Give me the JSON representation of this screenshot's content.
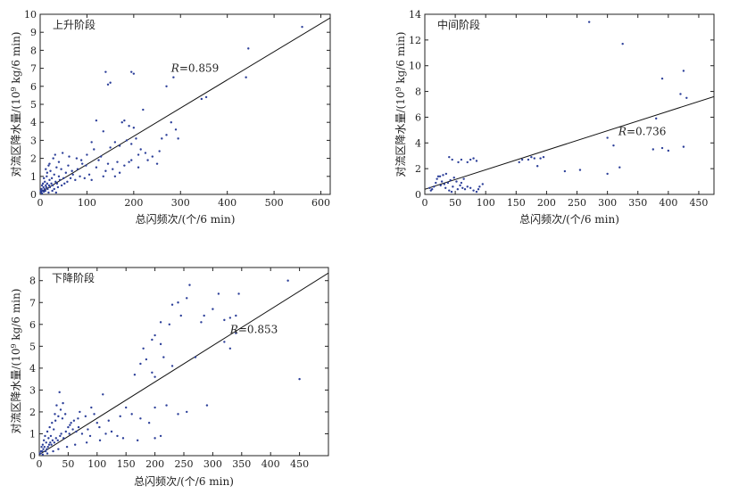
{
  "chart_data": [
    {
      "type": "scatter",
      "title": "上升阶段",
      "xlabel": "总闪频次/(个/6 min)",
      "ylabel_pre": "对流区降水量/(10",
      "ylabel_sup": "9",
      "ylabel_post": " kg/6 min)",
      "r_prefix": "R",
      "r_value": "=0.859",
      "xlim": [
        0,
        620
      ],
      "ylim": [
        0,
        10
      ],
      "xticks": [
        0,
        100,
        200,
        300,
        400,
        500,
        600
      ],
      "yticks": [
        0,
        1,
        2,
        3,
        4,
        5,
        6,
        7,
        8,
        9,
        10
      ],
      "fit_line": {
        "x": [
          0,
          620
        ],
        "y": [
          0.1,
          9.8
        ]
      },
      "r_label_at": [
        280,
        6.8
      ],
      "points": [
        [
          140,
          6.8
        ],
        [
          150,
          6.2
        ],
        [
          145,
          6.1
        ],
        [
          195,
          6.8
        ],
        [
          200,
          6.7
        ],
        [
          270,
          6.0
        ],
        [
          285,
          6.5
        ],
        [
          560,
          9.3
        ],
        [
          445,
          8.1
        ],
        [
          440,
          6.5
        ],
        [
          355,
          5.4
        ],
        [
          345,
          5.3
        ],
        [
          120,
          4.1
        ],
        [
          135,
          3.5
        ],
        [
          175,
          4.0
        ],
        [
          180,
          4.1
        ],
        [
          190,
          3.8
        ],
        [
          200,
          3.7
        ],
        [
          220,
          4.7
        ],
        [
          260,
          3.1
        ],
        [
          270,
          3.3
        ],
        [
          280,
          4.0
        ],
        [
          290,
          3.6
        ],
        [
          295,
          3.1
        ],
        [
          110,
          2.9
        ],
        [
          115,
          2.5
        ],
        [
          100,
          2.2
        ],
        [
          130,
          2.1
        ],
        [
          150,
          2.6
        ],
        [
          160,
          2.9
        ],
        [
          170,
          2.7
        ],
        [
          185,
          3.0
        ],
        [
          195,
          2.8
        ],
        [
          205,
          3.1
        ],
        [
          210,
          2.2
        ],
        [
          215,
          2.5
        ],
        [
          225,
          2.3
        ],
        [
          230,
          1.9
        ],
        [
          190,
          1.8
        ],
        [
          180,
          1.6
        ],
        [
          170,
          1.2
        ],
        [
          160,
          1.0
        ],
        [
          140,
          1.3
        ],
        [
          120,
          1.5
        ],
        [
          90,
          1.7
        ],
        [
          80,
          1.4
        ],
        [
          70,
          1.1
        ],
        [
          60,
          1.6
        ],
        [
          55,
          1.2
        ],
        [
          50,
          0.9
        ],
        [
          45,
          1.4
        ],
        [
          40,
          1.8
        ],
        [
          35,
          1.5
        ],
        [
          30,
          1.1
        ],
        [
          28,
          2.0
        ],
        [
          25,
          0.9
        ],
        [
          22,
          1.3
        ],
        [
          20,
          0.8
        ],
        [
          18,
          1.6
        ],
        [
          15,
          0.6
        ],
        [
          14,
          1.0
        ],
        [
          12,
          0.5
        ],
        [
          10,
          0.7
        ],
        [
          9,
          0.3
        ],
        [
          8,
          0.9
        ],
        [
          7,
          0.4
        ],
        [
          6,
          0.6
        ],
        [
          5,
          0.2
        ],
        [
          4,
          0.5
        ],
        [
          3,
          0.3
        ],
        [
          2,
          0.1
        ],
        [
          1,
          0.2
        ],
        [
          11,
          0.2
        ],
        [
          13,
          0.4
        ],
        [
          16,
          0.3
        ],
        [
          19,
          0.5
        ],
        [
          21,
          0.4
        ],
        [
          24,
          0.6
        ],
        [
          27,
          0.5
        ],
        [
          30,
          0.3
        ],
        [
          33,
          0.7
        ],
        [
          36,
          0.6
        ],
        [
          38,
          0.4
        ],
        [
          42,
          0.8
        ],
        [
          46,
          0.5
        ],
        [
          52,
          0.6
        ],
        [
          58,
          0.7
        ],
        [
          65,
          0.9
        ],
        [
          75,
          0.8
        ],
        [
          85,
          1.0
        ],
        [
          95,
          0.9
        ],
        [
          105,
          1.1
        ],
        [
          62,
          2.1
        ],
        [
          48,
          2.3
        ],
        [
          32,
          2.2
        ],
        [
          125,
          1.9
        ],
        [
          145,
          1.7
        ],
        [
          165,
          1.8
        ],
        [
          155,
          1.4
        ],
        [
          135,
          1.0
        ],
        [
          110,
          0.8
        ],
        [
          240,
          2.1
        ],
        [
          250,
          1.7
        ],
        [
          255,
          2.4
        ],
        [
          210,
          1.5
        ],
        [
          195,
          1.9
        ],
        [
          18,
          0.1
        ],
        [
          26,
          0.2
        ],
        [
          34,
          0.1
        ],
        [
          8,
          0.15
        ],
        [
          4,
          0.05
        ],
        [
          15,
          1.2
        ],
        [
          20,
          1.7
        ],
        [
          12,
          1.4
        ],
        [
          40,
          1.0
        ],
        [
          68,
          1.3
        ],
        [
          78,
          2.0
        ],
        [
          88,
          1.9
        ],
        [
          98,
          1.6
        ]
      ]
    },
    {
      "type": "scatter",
      "title": "中间阶段",
      "xlabel": "总闪频次/(个/6 min)",
      "ylabel_pre": "对流区降水量/(10",
      "ylabel_sup": "9",
      "ylabel_post": " kg/6 min)",
      "r_prefix": "R",
      "r_value": "=0.736",
      "xlim": [
        0,
        475
      ],
      "ylim": [
        0,
        14
      ],
      "xticks": [
        0,
        50,
        100,
        150,
        200,
        250,
        300,
        350,
        400,
        450
      ],
      "yticks": [
        0,
        2,
        4,
        6,
        8,
        10,
        12,
        14
      ],
      "fit_line": {
        "x": [
          0,
          475
        ],
        "y": [
          0.4,
          7.6
        ]
      },
      "r_label_at": [
        318,
        4.6
      ],
      "points": [
        [
          270,
          13.4
        ],
        [
          325,
          11.7
        ],
        [
          390,
          9.0
        ],
        [
          425,
          9.6
        ],
        [
          420,
          7.8
        ],
        [
          430,
          7.5
        ],
        [
          380,
          5.9
        ],
        [
          300,
          4.4
        ],
        [
          310,
          3.8
        ],
        [
          375,
          3.5
        ],
        [
          390,
          3.6
        ],
        [
          400,
          3.4
        ],
        [
          425,
          3.7
        ],
        [
          320,
          2.1
        ],
        [
          300,
          1.6
        ],
        [
          255,
          1.9
        ],
        [
          230,
          1.8
        ],
        [
          190,
          2.8
        ],
        [
          195,
          2.9
        ],
        [
          170,
          2.7
        ],
        [
          155,
          2.5
        ],
        [
          175,
          2.9
        ],
        [
          160,
          2.7
        ],
        [
          180,
          2.8
        ],
        [
          185,
          2.2
        ],
        [
          40,
          2.9
        ],
        [
          45,
          2.7
        ],
        [
          55,
          2.5
        ],
        [
          60,
          2.7
        ],
        [
          70,
          2.5
        ],
        [
          75,
          2.7
        ],
        [
          80,
          2.8
        ],
        [
          85,
          2.6
        ],
        [
          35,
          1.6
        ],
        [
          30,
          1.5
        ],
        [
          25,
          1.4
        ],
        [
          20,
          1.2
        ],
        [
          22,
          1.4
        ],
        [
          28,
          1.0
        ],
        [
          32,
          0.8
        ],
        [
          38,
          0.9
        ],
        [
          42,
          1.1
        ],
        [
          48,
          1.3
        ],
        [
          52,
          1.0
        ],
        [
          58,
          0.7
        ],
        [
          62,
          0.5
        ],
        [
          66,
          0.4
        ],
        [
          70,
          0.6
        ],
        [
          75,
          0.5
        ],
        [
          80,
          0.3
        ],
        [
          85,
          0.2
        ],
        [
          90,
          0.6
        ],
        [
          95,
          0.8
        ],
        [
          15,
          0.6
        ],
        [
          12,
          0.4
        ],
        [
          10,
          0.3
        ],
        [
          8,
          0.5
        ],
        [
          18,
          0.9
        ],
        [
          26,
          0.7
        ],
        [
          34,
          0.5
        ],
        [
          40,
          0.3
        ],
        [
          46,
          0.6
        ],
        [
          54,
          0.4
        ],
        [
          60,
          0.9
        ],
        [
          64,
          1.2
        ],
        [
          44,
          0.2
        ],
        [
          88,
          0.4
        ]
      ]
    },
    {
      "type": "scatter",
      "title": "下降阶段",
      "xlabel": "总闪频次/(个/6 min)",
      "ylabel_pre": "对流区降水量/(10",
      "ylabel_sup": "9",
      "ylabel_post": " kg/6 min)",
      "r_prefix": "R",
      "r_value": "=0.853",
      "xlim": [
        0,
        500
      ],
      "ylim": [
        0,
        8.6
      ],
      "xticks": [
        0,
        50,
        100,
        150,
        200,
        250,
        300,
        350,
        400,
        450
      ],
      "yticks": [
        0,
        1,
        2,
        3,
        4,
        5,
        6,
        7,
        8
      ],
      "fit_line": {
        "x": [
          0,
          500
        ],
        "y": [
          0.05,
          8.35
        ]
      },
      "r_label_at": [
        330,
        5.6
      ],
      "points": [
        [
          260,
          7.8
        ],
        [
          255,
          7.2
        ],
        [
          240,
          7.0
        ],
        [
          230,
          6.9
        ],
        [
          245,
          6.4
        ],
        [
          210,
          6.1
        ],
        [
          225,
          6.0
        ],
        [
          210,
          5.1
        ],
        [
          195,
          5.3
        ],
        [
          200,
          5.5
        ],
        [
          180,
          4.9
        ],
        [
          175,
          4.2
        ],
        [
          185,
          4.4
        ],
        [
          195,
          3.8
        ],
        [
          200,
          3.6
        ],
        [
          165,
          3.7
        ],
        [
          215,
          4.5
        ],
        [
          230,
          4.1
        ],
        [
          280,
          6.1
        ],
        [
          285,
          6.4
        ],
        [
          300,
          6.7
        ],
        [
          310,
          7.4
        ],
        [
          320,
          6.2
        ],
        [
          330,
          6.3
        ],
        [
          340,
          6.4
        ],
        [
          345,
          7.4
        ],
        [
          340,
          5.6
        ],
        [
          330,
          4.9
        ],
        [
          320,
          5.2
        ],
        [
          430,
          8.0
        ],
        [
          450,
          3.5
        ],
        [
          270,
          4.5
        ],
        [
          290,
          2.3
        ],
        [
          255,
          2.0
        ],
        [
          240,
          1.9
        ],
        [
          220,
          2.3
        ],
        [
          200,
          2.2
        ],
        [
          190,
          1.5
        ],
        [
          175,
          1.7
        ],
        [
          160,
          1.9
        ],
        [
          150,
          2.2
        ],
        [
          140,
          1.8
        ],
        [
          120,
          1.6
        ],
        [
          110,
          2.8
        ],
        [
          100,
          1.5
        ],
        [
          95,
          1.9
        ],
        [
          90,
          2.2
        ],
        [
          80,
          1.8
        ],
        [
          70,
          2.0
        ],
        [
          60,
          1.6
        ],
        [
          55,
          1.5
        ],
        [
          50,
          1.3
        ],
        [
          45,
          1.9
        ],
        [
          40,
          1.7
        ],
        [
          35,
          2.9
        ],
        [
          30,
          2.3
        ],
        [
          28,
          1.6
        ],
        [
          25,
          1.2
        ],
        [
          22,
          1.5
        ],
        [
          20,
          0.9
        ],
        [
          18,
          1.3
        ],
        [
          16,
          0.8
        ],
        [
          14,
          1.1
        ],
        [
          12,
          0.6
        ],
        [
          10,
          0.9
        ],
        [
          9,
          0.4
        ],
        [
          8,
          0.7
        ],
        [
          7,
          0.3
        ],
        [
          6,
          0.5
        ],
        [
          5,
          0.2
        ],
        [
          4,
          0.4
        ],
        [
          3,
          0.2
        ],
        [
          2,
          0.1
        ],
        [
          1,
          0.1
        ],
        [
          11,
          0.2
        ],
        [
          13,
          0.3
        ],
        [
          15,
          0.4
        ],
        [
          17,
          0.5
        ],
        [
          19,
          0.6
        ],
        [
          21,
          0.5
        ],
        [
          23,
          0.7
        ],
        [
          26,
          0.6
        ],
        [
          29,
          0.8
        ],
        [
          32,
          0.7
        ],
        [
          36,
          0.9
        ],
        [
          38,
          1.0
        ],
        [
          42,
          0.8
        ],
        [
          46,
          1.1
        ],
        [
          52,
          1.0
        ],
        [
          58,
          1.2
        ],
        [
          64,
          1.1
        ],
        [
          68,
          1.3
        ],
        [
          74,
          1.0
        ],
        [
          84,
          1.2
        ],
        [
          88,
          0.9
        ],
        [
          104,
          1.3
        ],
        [
          115,
          1.0
        ],
        [
          125,
          1.1
        ],
        [
          135,
          0.9
        ],
        [
          145,
          0.8
        ],
        [
          170,
          0.7
        ],
        [
          200,
          0.8
        ],
        [
          210,
          0.9
        ],
        [
          105,
          0.7
        ],
        [
          82,
          0.6
        ],
        [
          62,
          0.5
        ],
        [
          48,
          0.4
        ],
        [
          33,
          0.3
        ],
        [
          24,
          0.2
        ],
        [
          14,
          0.1
        ],
        [
          6,
          0.05
        ],
        [
          27,
          1.9
        ],
        [
          33,
          1.8
        ],
        [
          41,
          2.4
        ],
        [
          37,
          2.1
        ],
        [
          53,
          1.4
        ],
        [
          67,
          1.7
        ]
      ]
    }
  ]
}
